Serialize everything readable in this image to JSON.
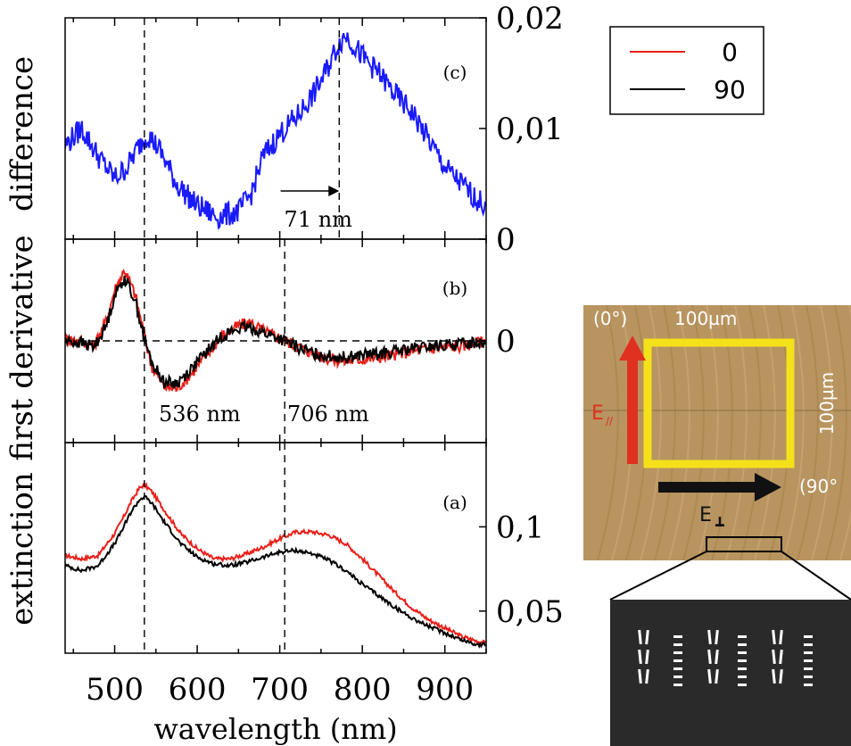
{
  "chart_data": {
    "type": "line",
    "xlabel": "wavelength (nm)",
    "x_ticks": [
      500,
      600,
      700,
      800,
      900
    ],
    "xlim": [
      440,
      950
    ],
    "legend": {
      "placement": "top-right",
      "entries": [
        {
          "label": "0",
          "color": "#e8201a"
        },
        {
          "label": "90",
          "color": "#000000"
        }
      ]
    },
    "panels": [
      {
        "id": "a",
        "panel_label": "(a)",
        "ylabel": "extinction",
        "ylim": [
          0.025,
          0.15
        ],
        "y_ticks": [
          {
            "value": 0.1,
            "label": "0,1"
          },
          {
            "value": 0.05,
            "label": "0,05"
          }
        ],
        "vlines": [
          536,
          706
        ],
        "series": [
          {
            "name": "0",
            "color": "#e8201a",
            "x": [
              440,
              460,
              480,
              500,
              510,
              520,
              530,
              536,
              545,
              560,
              580,
              600,
              620,
              640,
              660,
              680,
              700,
              720,
              740,
              760,
              780,
              800,
              820,
              840,
              860,
              880,
              900,
              920,
              940,
              950
            ],
            "y": [
              0.083,
              0.081,
              0.083,
              0.096,
              0.105,
              0.115,
              0.123,
              0.125,
              0.121,
              0.11,
              0.096,
              0.087,
              0.081,
              0.081,
              0.084,
              0.088,
              0.093,
              0.097,
              0.097,
              0.095,
              0.09,
              0.081,
              0.071,
              0.061,
              0.052,
              0.045,
              0.04,
              0.035,
              0.032,
              0.031
            ]
          },
          {
            "name": "90",
            "color": "#000000",
            "x": [
              440,
              460,
              480,
              500,
              510,
              520,
              530,
              536,
              545,
              560,
              580,
              600,
              620,
              640,
              660,
              680,
              700,
              720,
              740,
              760,
              780,
              800,
              820,
              840,
              860,
              880,
              900,
              920,
              940,
              950
            ],
            "y": [
              0.077,
              0.074,
              0.077,
              0.09,
              0.099,
              0.109,
              0.116,
              0.118,
              0.114,
              0.103,
              0.09,
              0.082,
              0.078,
              0.077,
              0.079,
              0.082,
              0.085,
              0.086,
              0.084,
              0.08,
              0.074,
              0.066,
              0.059,
              0.052,
              0.046,
              0.041,
              0.037,
              0.033,
              0.03,
              0.03
            ]
          }
        ]
      },
      {
        "id": "b",
        "panel_label": "(b)",
        "ylabel": "first derivative",
        "ylim": [
          -1,
          1
        ],
        "y_ticks": [
          {
            "value": 0,
            "label": "0"
          }
        ],
        "hline": 0,
        "vlines": [
          536,
          706
        ],
        "annotations": [
          "536 nm",
          "706 nm"
        ],
        "series": [
          {
            "name": "0",
            "color": "#e8201a",
            "x": [
              440,
              460,
              475,
              490,
              500,
              512,
              525,
              536,
              545,
              560,
              575,
              590,
              610,
              630,
              650,
              665,
              680,
              700,
              720,
              740,
              760,
              780,
              800,
              830,
              860,
              890,
              920,
              950
            ],
            "y": [
              0.02,
              0.0,
              -0.05,
              0.2,
              0.5,
              0.7,
              0.45,
              0.05,
              -0.25,
              -0.45,
              -0.47,
              -0.35,
              -0.15,
              0.05,
              0.15,
              0.18,
              0.1,
              0.03,
              -0.05,
              -0.12,
              -0.18,
              -0.2,
              -0.18,
              -0.15,
              -0.1,
              -0.07,
              -0.05,
              0.0
            ]
          },
          {
            "name": "90",
            "color": "#000000",
            "x": [
              440,
              460,
              475,
              490,
              500,
              512,
              525,
              536,
              545,
              560,
              575,
              590,
              610,
              630,
              650,
              665,
              680,
              700,
              720,
              740,
              760,
              780,
              800,
              830,
              860,
              890,
              920,
              950
            ],
            "y": [
              0.0,
              -0.02,
              -0.06,
              0.15,
              0.45,
              0.62,
              0.4,
              0.02,
              -0.22,
              -0.4,
              -0.42,
              -0.3,
              -0.12,
              0.05,
              0.12,
              0.13,
              0.08,
              0.02,
              -0.06,
              -0.12,
              -0.15,
              -0.16,
              -0.14,
              -0.12,
              -0.08,
              -0.05,
              -0.03,
              0.0
            ]
          }
        ]
      },
      {
        "id": "c",
        "panel_label": "(c)",
        "ylabel": "difference",
        "ylim": [
          0,
          0.02
        ],
        "y_ticks": [
          {
            "value": 0.02,
            "label": "0,02"
          },
          {
            "value": 0.01,
            "label": "0,01"
          },
          {
            "value": 0,
            "label": "0"
          }
        ],
        "vlines": [
          536,
          772
        ],
        "arrow": {
          "from": 701,
          "to": 772,
          "label": "71 nm"
        },
        "series": [
          {
            "name": "difference",
            "color": "#1a1aff",
            "x": [
              440,
              460,
              480,
              500,
              515,
              530,
              540,
              555,
              575,
              600,
              625,
              650,
              665,
              680,
              700,
              720,
              740,
              755,
              770,
              780,
              800,
              820,
              840,
              860,
              880,
              900,
              920,
              940,
              950
            ],
            "y": [
              0.0085,
              0.01,
              0.0075,
              0.0055,
              0.0065,
              0.0085,
              0.0095,
              0.008,
              0.005,
              0.003,
              0.002,
              0.0025,
              0.004,
              0.0075,
              0.0095,
              0.011,
              0.013,
              0.015,
              0.0175,
              0.0185,
              0.0165,
              0.015,
              0.013,
              0.0115,
              0.009,
              0.0065,
              0.005,
              0.0035,
              0.003
            ]
          }
        ]
      }
    ]
  },
  "inset": {
    "photo_labels": {
      "angle_0": "(0°)",
      "size_top": "100µm",
      "size_side": "100µm",
      "e_parallel": "E",
      "e_parallel_sub": "//",
      "angle_90": "(90°",
      "e_perp": "E",
      "e_perp_sub": "┻"
    },
    "colors": {
      "photo_bg": "#b89460",
      "frame": "#f5e11a",
      "red_arrow": "#e03020",
      "dark_arrow": "#111111",
      "sem_bg": "#2a2a2a"
    }
  }
}
